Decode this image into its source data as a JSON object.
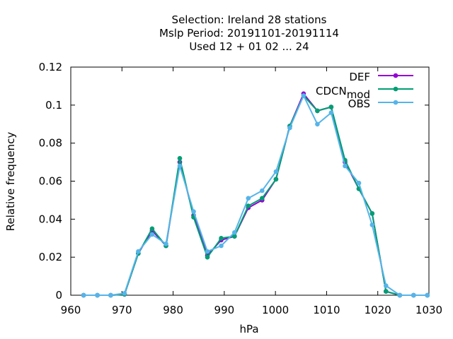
{
  "chart_data": {
    "type": "line",
    "title_lines": [
      "Selection: Ireland      28 stations",
      "Mslp  Period: 20191101-20191114",
      "Used  12 + 01 02 ... 24"
    ],
    "xlabel": "hPa",
    "ylabel": "Relative frequency",
    "xlim": [
      960,
      1030
    ],
    "ylim": [
      0,
      0.12
    ],
    "xticks": [
      960,
      970,
      980,
      990,
      1000,
      1010,
      1020,
      1030
    ],
    "yticks": [
      0,
      0.02,
      0.04,
      0.06,
      0.08,
      0.1,
      0.12
    ],
    "xtick_labels": [
      "960",
      "970",
      "980",
      "990",
      "1000",
      "1010",
      "1020",
      "1030"
    ],
    "ytick_labels": [
      "0",
      "0.02",
      "0.04",
      "0.06",
      "0.08",
      "0.1",
      "0.12"
    ],
    "grid": false,
    "legend_position": "top-right",
    "x": [
      962.5,
      965.2,
      967.8,
      970.5,
      973.2,
      975.9,
      978.6,
      981.3,
      984.0,
      986.7,
      989.4,
      992.0,
      994.7,
      997.4,
      1000.1,
      1002.8,
      1005.5,
      1008.2,
      1010.9,
      1013.6,
      1016.3,
      1018.9,
      1021.6,
      1024.3,
      1027.0,
      1029.7
    ],
    "series": [
      {
        "name": "DEF",
        "color": "#9400d3",
        "values": [
          0,
          0,
          0,
          0.0005,
          0.022,
          0.034,
          0.026,
          0.07,
          0.042,
          0.021,
          0.029,
          0.031,
          0.046,
          0.05,
          0.061,
          0.089,
          0.106,
          0.097,
          0.099,
          0.07,
          0.056,
          0.043,
          0.002,
          0,
          0,
          0
        ]
      },
      {
        "name": "CDCN_mod",
        "name_main": "CDCN",
        "name_sub": "mod",
        "color": "#009e73",
        "values": [
          0,
          0,
          0,
          0.0005,
          0.022,
          0.035,
          0.026,
          0.072,
          0.041,
          0.02,
          0.03,
          0.031,
          0.047,
          0.051,
          0.061,
          0.089,
          0.105,
          0.097,
          0.099,
          0.071,
          0.056,
          0.043,
          0.002,
          0,
          0,
          0
        ]
      },
      {
        "name": "OBS",
        "color": "#56b4e9",
        "values": [
          0,
          0,
          0,
          0.001,
          0.023,
          0.032,
          0.027,
          0.068,
          0.044,
          0.023,
          0.026,
          0.033,
          0.051,
          0.055,
          0.065,
          0.088,
          0.105,
          0.09,
          0.096,
          0.068,
          0.059,
          0.037,
          0.005,
          0,
          0,
          0
        ]
      }
    ]
  }
}
